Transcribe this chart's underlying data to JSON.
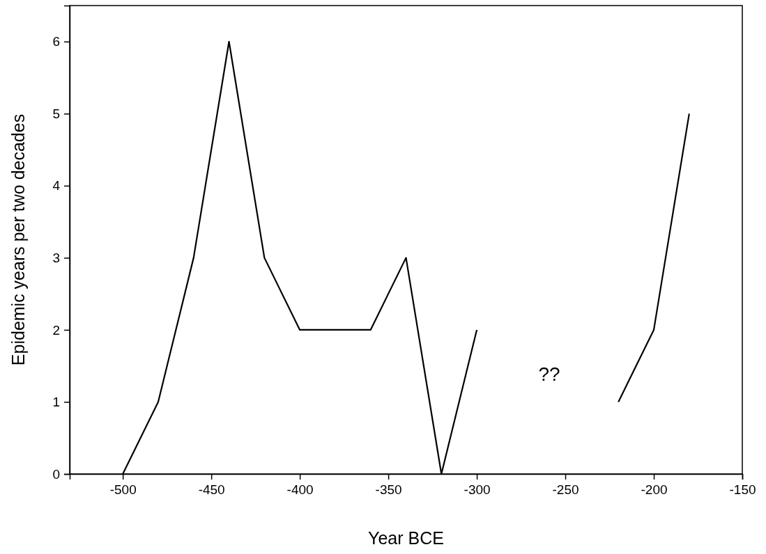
{
  "chart_data": {
    "type": "line",
    "xlabel": "Year BCE",
    "ylabel": "Epidemic years per two decades",
    "x": [
      -500,
      -480,
      -460,
      -440,
      -420,
      -400,
      -380,
      -360,
      -340,
      -320,
      -300,
      -280,
      -260,
      -240,
      -220,
      -200,
      -180
    ],
    "series": [
      {
        "color": "#000000",
        "values": [
          0,
          1,
          3,
          6,
          3,
          2,
          2,
          2,
          3,
          0,
          2,
          null,
          null,
          null,
          1,
          2,
          5
        ]
      }
    ],
    "xlim": [
      -530,
      -150
    ],
    "xticks": [
      -500,
      -450,
      -400,
      -350,
      -300,
      -250,
      -200,
      -150
    ],
    "ylim": [
      0,
      6.5
    ],
    "yticks": [
      0,
      1,
      2,
      3,
      4,
      5,
      6
    ],
    "annotations": [
      "??"
    ],
    "grid": false,
    "marker": "none",
    "line_style": "solid"
  }
}
